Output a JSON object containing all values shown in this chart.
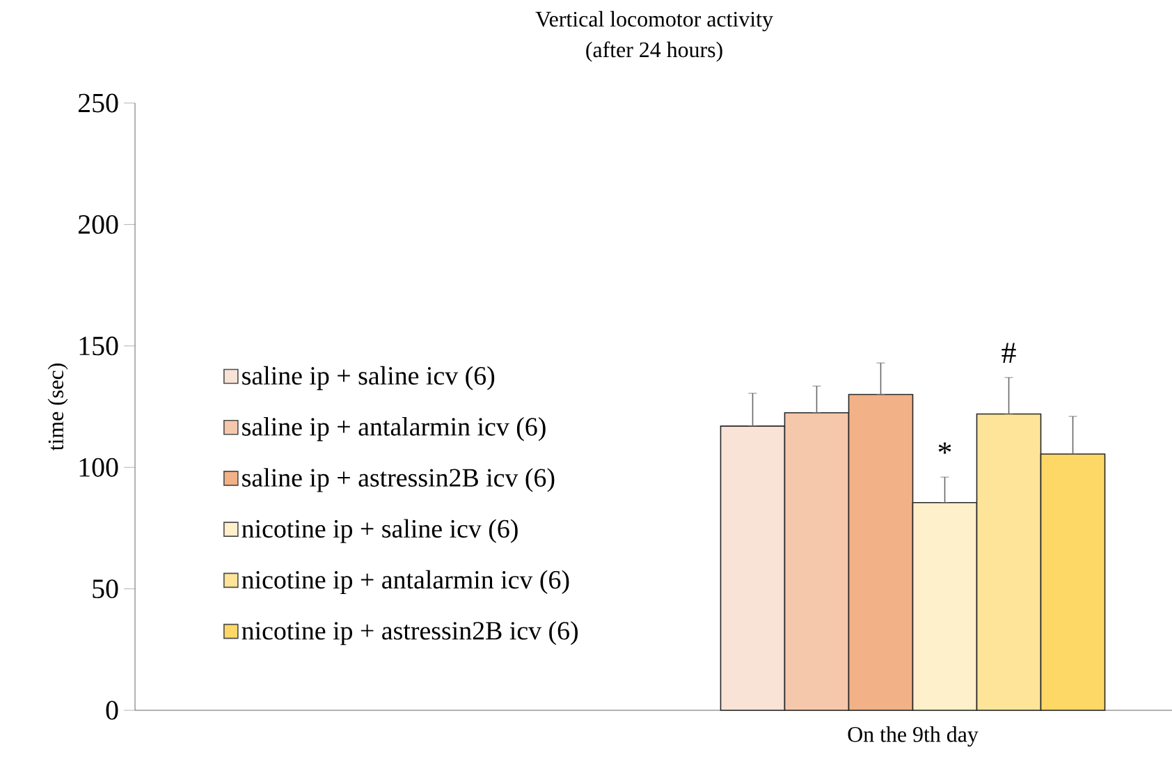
{
  "chart_data": {
    "type": "bar",
    "title": "Vertical locomotor activity",
    "subtitle": "(after 24 hours)",
    "ylabel": "time (sec)",
    "categories": [
      null,
      "On the 9th day"
    ],
    "series": [
      {
        "name": "saline ip + saline icv (6)",
        "color": "#f9e3d6",
        "values": [
          null,
          117
        ],
        "errors": [
          null,
          [
            117,
            130.5
          ]
        ]
      },
      {
        "name": "saline ip + antalarmin icv (6)",
        "color": "#f6c8ab",
        "values": [
          null,
          122.5
        ],
        "errors": [
          null,
          [
            122.5,
            133.5
          ]
        ]
      },
      {
        "name": "saline ip + astressin2B icv (6)",
        "color": "#f2b186",
        "values": [
          null,
          130
        ],
        "errors": [
          null,
          [
            130,
            143
          ]
        ]
      },
      {
        "name": "nicotine ip + saline icv (6)",
        "color": "#fef0cb",
        "values": [
          null,
          85.5
        ],
        "errors": [
          null,
          [
            85.5,
            96
          ]
        ]
      },
      {
        "name": "nicotine ip + antalarmin icv (6)",
        "color": "#fde498",
        "values": [
          null,
          122
        ],
        "errors": [
          null,
          [
            122,
            137
          ]
        ]
      },
      {
        "name": "nicotine ip + astressin2B icv (6)",
        "color": "#fdd866",
        "values": [
          null,
          105.5
        ],
        "errors": [
          null,
          [
            105.5,
            121
          ]
        ]
      }
    ],
    "annotations": [
      "*",
      "#"
    ],
    "ylim": [
      0,
      250
    ],
    "yticks": [
      0,
      50,
      100,
      150,
      200,
      250
    ],
    "legend": "left"
  }
}
